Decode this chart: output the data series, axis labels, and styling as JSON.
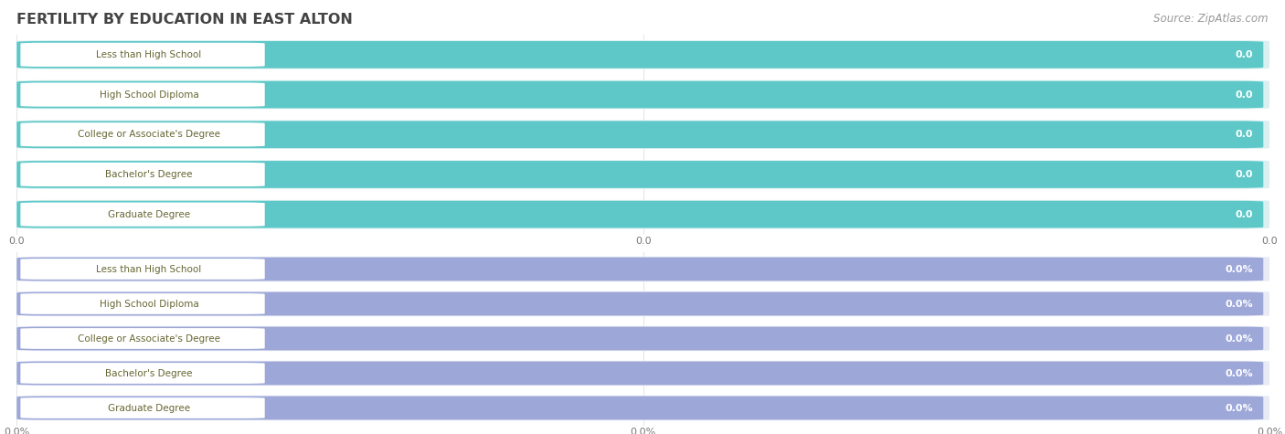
{
  "title": "FERTILITY BY EDUCATION IN EAST ALTON",
  "source": "Source: ZipAtlas.com",
  "categories": [
    "Less than High School",
    "High School Diploma",
    "College or Associate's Degree",
    "Bachelor's Degree",
    "Graduate Degree"
  ],
  "group1_values": [
    0.0,
    0.0,
    0.0,
    0.0,
    0.0
  ],
  "group2_values": [
    0.0,
    0.0,
    0.0,
    0.0,
    0.0
  ],
  "group1_value_suffix": "",
  "group2_value_suffix": "%",
  "group1_bar_color": "#5ec8c8",
  "group1_outer_color": "#daf0f0",
  "group2_bar_color": "#9da8d8",
  "group2_outer_color": "#e8eaf5",
  "label_text_color": "#666633",
  "value_color": "#ffffff",
  "grid_color": "#dddddd",
  "background_color": "#ffffff",
  "title_color": "#444444",
  "source_color": "#999999",
  "figwidth": 14.06,
  "figheight": 4.75
}
